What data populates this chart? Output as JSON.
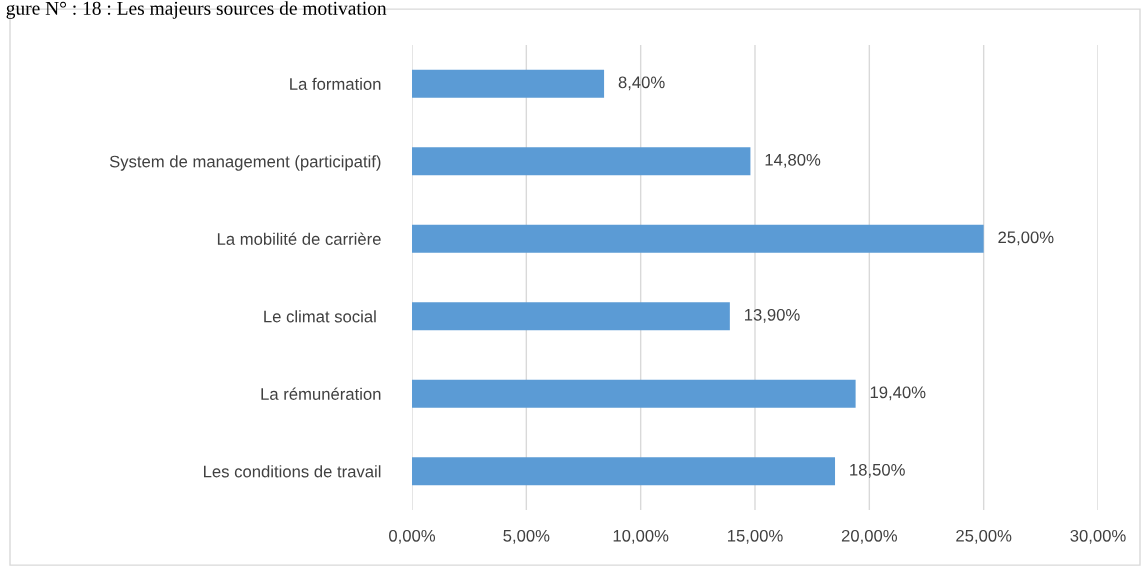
{
  "chart_data": {
    "type": "bar",
    "orientation": "horizontal",
    "title": "gure N° : 18 : Les majeurs sources de motivation",
    "categories": [
      "La formation",
      "System de management (participatif)",
      "La mobilité de carrière",
      "Le climat social ",
      "La rémunération",
      "Les conditions de travail"
    ],
    "values": [
      8.4,
      14.8,
      25.0,
      13.9,
      19.4,
      18.5
    ],
    "value_labels": [
      "8,40%",
      "14,80%",
      "25,00%",
      "13,90%",
      "19,40%",
      "18,50%"
    ],
    "color": "#5b9bd5",
    "xlim": [
      0,
      30
    ],
    "xticks": [
      {
        "value": 0,
        "label": "0,00%"
      },
      {
        "value": 5,
        "label": "5,00%"
      },
      {
        "value": 10,
        "label": "10,00%"
      },
      {
        "value": 15,
        "label": "15,00%"
      },
      {
        "value": 20,
        "label": "20,00%"
      },
      {
        "value": 25,
        "label": "25,00%"
      },
      {
        "value": 30,
        "label": "30,00%"
      }
    ],
    "grid": "x",
    "legend": false
  }
}
